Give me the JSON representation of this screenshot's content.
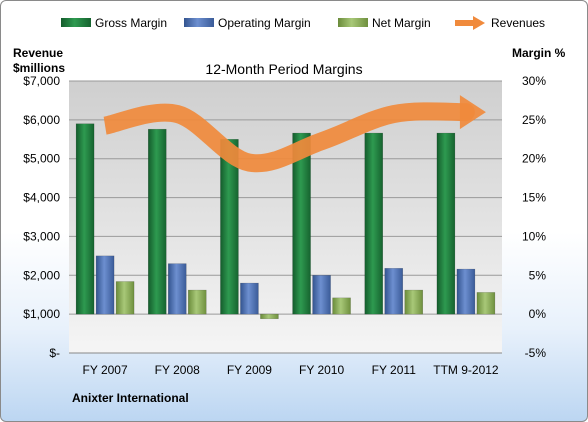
{
  "chart_data": {
    "type": "bar",
    "title": "12-Month Period Margins",
    "company": "Anixter International",
    "categories": [
      "FY 2007",
      "FY 2008",
      "FY 2009",
      "FY 2010",
      "FY 2011",
      "TTM 9-2012"
    ],
    "left_axis": {
      "label_line1": "Revenue",
      "label_line2": "$millions",
      "ticks": [
        "$-",
        "$1,000",
        "$2,000",
        "$3,000",
        "$4,000",
        "$5,000",
        "$6,000",
        "$7,000"
      ],
      "range": [
        0,
        7000
      ]
    },
    "right_axis": {
      "label": "Margin %",
      "ticks": [
        "-5%",
        "0%",
        "5%",
        "10%",
        "15%",
        "20%",
        "25%",
        "30%"
      ],
      "range": [
        -5,
        30
      ]
    },
    "series": [
      {
        "name": "Gross Margin",
        "axis": "right",
        "color": "#1e7a3c",
        "values": [
          24.5,
          23.8,
          22.5,
          23.3,
          23.3,
          23.3
        ]
      },
      {
        "name": "Operating Margin",
        "axis": "right",
        "color": "#4a6fb5",
        "values": [
          7.5,
          6.5,
          4.0,
          5.0,
          5.9,
          5.8
        ]
      },
      {
        "name": "Net Margin",
        "axis": "right",
        "color": "#8db254",
        "values": [
          4.2,
          3.1,
          -0.6,
          2.1,
          3.1,
          2.8
        ]
      },
      {
        "name": "Revenues",
        "axis": "left",
        "color": "#f08a3c",
        "type": "arrow",
        "values": [
          5850,
          6150,
          4900,
          5450,
          6150,
          6200
        ]
      }
    ],
    "grid": true,
    "legend_position": "top"
  }
}
